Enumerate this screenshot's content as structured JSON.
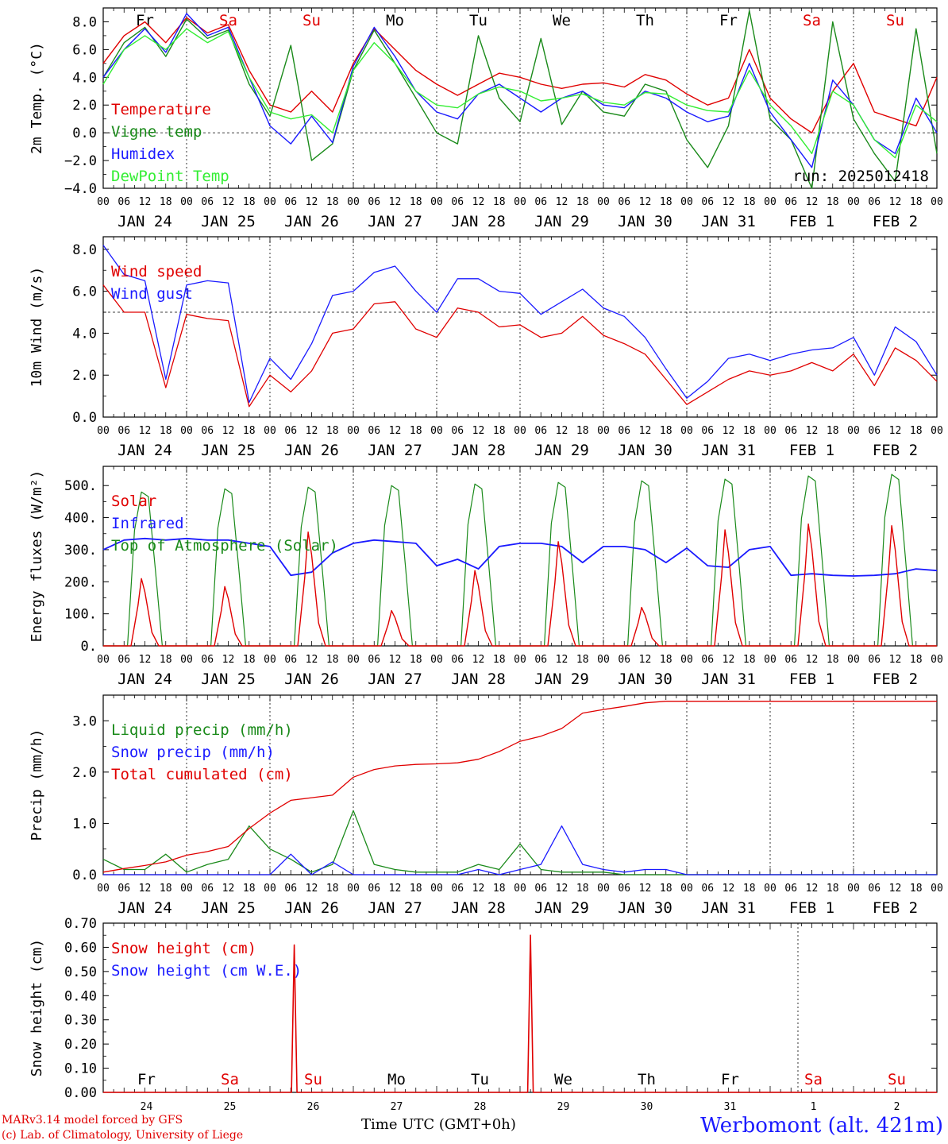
{
  "footer": {
    "model": "MARv3.14 model forced by GFS",
    "lab": "(c) Lab. of Climatology, University of Liege",
    "time_label": "Time UTC (GMT+0h)",
    "station": "Werbomont (alt. 421m)"
  },
  "hour_ticks": [
    "00",
    "06",
    "12",
    "18"
  ],
  "date_labels": [
    "JAN 24",
    "JAN 25",
    "JAN 26",
    "JAN 27",
    "JAN 28",
    "JAN 29",
    "JAN 30",
    "JAN 31",
    "FEB  1",
    "FEB  2"
  ],
  "day_names": [
    "Fr",
    "Sa",
    "Su",
    "Mo",
    "Tu",
    "We",
    "Th",
    "Fr",
    "Sa",
    "Su"
  ],
  "day_colors": [
    "#000000",
    "#e00000",
    "#e00000",
    "#000000",
    "#000000",
    "#000000",
    "#000000",
    "#000000",
    "#e00000",
    "#e00000"
  ],
  "day_numbers": [
    "24",
    "25",
    "26",
    "27",
    "28",
    "29",
    "30",
    "31",
    "1",
    "2"
  ],
  "chart_data": [
    {
      "type": "line",
      "ylabel": "2m Temp. (°C)",
      "ylim": [
        -4,
        9
      ],
      "yticks": [
        -4,
        -2,
        0,
        2,
        4,
        6,
        8
      ],
      "ytick_labels": [
        "−4.0",
        "−2.0",
        "0.0",
        "2.0",
        "4.0",
        "6.0",
        "8.0"
      ],
      "ref_line": 0,
      "annotation": "run: 2025012418",
      "x_hours": [
        0,
        6,
        12,
        18,
        24,
        30,
        36,
        42,
        48,
        54,
        60,
        66,
        72,
        78,
        84,
        90,
        96,
        102,
        108,
        114,
        120,
        126,
        132,
        138,
        144,
        150,
        156,
        162,
        168,
        174,
        180,
        186,
        192,
        198,
        204,
        210,
        216,
        222,
        228,
        234,
        240
      ],
      "series": [
        {
          "name": "Temperature",
          "color": "#e00000",
          "values": [
            5.0,
            7.0,
            8.0,
            6.5,
            8.3,
            7.2,
            7.8,
            4.5,
            2.0,
            1.5,
            3.0,
            1.5,
            5.0,
            7.5,
            6.0,
            4.5,
            3.5,
            2.7,
            3.5,
            4.3,
            4.0,
            3.5,
            3.2,
            3.5,
            3.6,
            3.3,
            4.2,
            3.8,
            2.8,
            2.0,
            2.5,
            6.0,
            2.5,
            1.0,
            0,
            3.0,
            5.0,
            1.5,
            1.0,
            0.5,
            4.0
          ]
        },
        {
          "name": "Vigne temp",
          "color": "#1a8a1a",
          "values": [
            4.0,
            6.5,
            7.6,
            5.5,
            8.2,
            6.8,
            7.4,
            3.5,
            1.2,
            6.3,
            -2.0,
            -0.8,
            4.5,
            7.4,
            5.0,
            2.5,
            0,
            -0.8,
            7.0,
            2.5,
            0.8,
            6.8,
            0.6,
            3.0,
            1.5,
            1.2,
            3.5,
            3.0,
            -0.5,
            -2.5,
            0.5,
            8.8,
            1.0,
            -0.5,
            -4.0,
            8.0,
            1.0,
            -1.5,
            -3.5,
            7.5,
            -1.5
          ]
        },
        {
          "name": "Humidex",
          "color": "#1a1aff",
          "values": [
            4.0,
            6.0,
            7.5,
            5.8,
            8.6,
            7.0,
            7.6,
            4.0,
            0.5,
            -0.8,
            1.2,
            -0.7,
            4.8,
            7.6,
            5.5,
            3.0,
            1.5,
            1.0,
            2.8,
            3.5,
            2.5,
            1.5,
            2.5,
            3.0,
            2.0,
            1.8,
            3.0,
            2.5,
            1.5,
            0.8,
            1.2,
            5.0,
            1.5,
            -0.5,
            -2.5,
            3.8,
            2.0,
            -0.5,
            -1.5,
            2.5,
            0.0
          ]
        },
        {
          "name": "DewPoint Temp",
          "color": "#33ee33",
          "values": [
            3.5,
            6.0,
            7.0,
            6.0,
            7.5,
            6.5,
            7.3,
            4.0,
            1.5,
            1.0,
            1.3,
            0.0,
            4.5,
            6.5,
            5.0,
            3.0,
            2.0,
            1.8,
            2.8,
            3.3,
            3.0,
            2.3,
            2.5,
            2.8,
            2.2,
            2.0,
            2.9,
            2.8,
            2.0,
            1.6,
            1.5,
            4.5,
            2.0,
            0.5,
            -1.5,
            3.0,
            2.0,
            -0.5,
            -1.8,
            2.0,
            0.8
          ]
        }
      ]
    },
    {
      "type": "line",
      "ylabel": "10m Wind (m/s)",
      "ylim": [
        0,
        8.6
      ],
      "yticks": [
        0,
        2,
        4,
        6,
        8
      ],
      "ytick_labels": [
        "0.0",
        "2.0",
        "4.0",
        "6.0",
        "8.0"
      ],
      "ref_line": 5,
      "x_hours": [
        0,
        6,
        12,
        18,
        24,
        30,
        36,
        42,
        48,
        54,
        60,
        66,
        72,
        78,
        84,
        90,
        96,
        102,
        108,
        114,
        120,
        126,
        132,
        138,
        144,
        150,
        156,
        162,
        168,
        174,
        180,
        186,
        192,
        198,
        204,
        210,
        216,
        222,
        228,
        234,
        240
      ],
      "series": [
        {
          "name": "Wind speed",
          "color": "#e00000",
          "values": [
            6.3,
            5.0,
            5.0,
            1.4,
            4.9,
            4.7,
            4.6,
            0.5,
            2.0,
            1.2,
            2.2,
            4.0,
            4.2,
            5.4,
            5.5,
            4.2,
            3.8,
            5.2,
            5.0,
            4.3,
            4.4,
            3.8,
            4.0,
            4.8,
            3.9,
            3.5,
            3.0,
            1.8,
            0.6,
            1.2,
            1.8,
            2.2,
            2.0,
            2.2,
            2.6,
            2.2,
            3.0,
            1.5,
            3.3,
            2.7,
            1.7
          ]
        },
        {
          "name": "Wind gust",
          "color": "#1a1aff",
          "values": [
            8.2,
            6.8,
            6.5,
            1.8,
            6.3,
            6.5,
            6.4,
            0.7,
            2.8,
            1.8,
            3.5,
            5.8,
            6.0,
            6.9,
            7.2,
            6.0,
            5.0,
            6.6,
            6.6,
            6.0,
            5.9,
            4.9,
            5.5,
            6.1,
            5.2,
            4.8,
            3.8,
            2.3,
            0.9,
            1.7,
            2.8,
            3.0,
            2.7,
            3.0,
            3.2,
            3.3,
            3.8,
            2.0,
            4.3,
            3.6,
            2.0
          ]
        }
      ]
    },
    {
      "type": "line",
      "ylabel": "Energy fluxes (W/m²)",
      "ylim": [
        0,
        560
      ],
      "yticks": [
        0,
        100,
        200,
        300,
        400,
        500
      ],
      "ytick_labels": [
        "0.",
        "100.",
        "200.",
        "300.",
        "400.",
        "500."
      ],
      "solar_peaks": [
        210,
        185,
        355,
        110,
        235,
        325,
        120,
        362,
        380,
        375
      ],
      "toa_peaks": [
        480,
        490,
        495,
        500,
        505,
        510,
        515,
        520,
        530,
        535
      ],
      "infrared_hours": [
        0,
        6,
        12,
        18,
        24,
        30,
        36,
        42,
        48,
        54,
        60,
        66,
        72,
        78,
        84,
        90,
        96,
        102,
        108,
        114,
        120,
        126,
        132,
        138,
        144,
        150,
        156,
        162,
        168,
        174,
        180,
        186,
        192,
        198,
        204,
        210,
        216,
        222,
        228,
        234,
        240
      ],
      "infrared_values": [
        300,
        330,
        335,
        330,
        335,
        330,
        330,
        320,
        310,
        220,
        230,
        290,
        320,
        330,
        325,
        320,
        250,
        270,
        240,
        310,
        320,
        320,
        310,
        260,
        310,
        310,
        300,
        260,
        305,
        250,
        245,
        300,
        310,
        220,
        225,
        220,
        218,
        220,
        225,
        240,
        235
      ],
      "series": [
        {
          "name": "Solar",
          "color": "#e00000"
        },
        {
          "name": "Infrared",
          "color": "#1a1aff"
        },
        {
          "name": "Top of Atmosphere (Solar)",
          "color": "#1a8a1a"
        }
      ]
    },
    {
      "type": "line",
      "ylabel": "Precip (mm/h)",
      "ylim": [
        0,
        3.5
      ],
      "yticks": [
        0,
        1,
        2,
        3
      ],
      "ytick_labels": [
        "0.0",
        "1.0",
        "2.0",
        "3.0"
      ],
      "x_hours": [
        0,
        6,
        12,
        18,
        24,
        30,
        36,
        42,
        48,
        54,
        60,
        66,
        72,
        78,
        84,
        90,
        96,
        102,
        108,
        114,
        120,
        126,
        132,
        138,
        144,
        150,
        156,
        162,
        168,
        174,
        180,
        186,
        192,
        198,
        204,
        210,
        216,
        222,
        228,
        234,
        240
      ],
      "series": [
        {
          "name": "Liquid precip (mm/h)",
          "color": "#1a8a1a",
          "values": [
            0.3,
            0.1,
            0.1,
            0.4,
            0.05,
            0.2,
            0.3,
            0.95,
            0.5,
            0.3,
            0.05,
            0.2,
            1.25,
            0.2,
            0.1,
            0.05,
            0.05,
            0.05,
            0.2,
            0.1,
            0.6,
            0.1,
            0.05,
            0.05,
            0.05,
            0.0,
            0.0,
            0.0,
            0.0,
            0.0,
            0.0,
            0.0,
            0.0,
            0.0,
            0.0,
            0.0,
            0.0,
            0.0,
            0.0,
            0.0,
            0.0
          ]
        },
        {
          "name": "Snow precip (mm/h)",
          "color": "#1a1aff",
          "values": [
            0.0,
            0.0,
            0.0,
            0.0,
            0.0,
            0.0,
            0.0,
            0.0,
            0.0,
            0.4,
            0.0,
            0.25,
            0.0,
            0.0,
            0.0,
            0.0,
            0.0,
            0.0,
            0.1,
            0.0,
            0.1,
            0.2,
            0.95,
            0.2,
            0.1,
            0.05,
            0.1,
            0.1,
            0.0,
            0.0,
            0.0,
            0.0,
            0.0,
            0.0,
            0.0,
            0.0,
            0.0,
            0.0,
            0.0,
            0.0,
            0.0
          ]
        },
        {
          "name": "Total cumulated (cm)",
          "color": "#e00000",
          "values": [
            0.05,
            0.12,
            0.18,
            0.25,
            0.38,
            0.45,
            0.55,
            0.9,
            1.2,
            1.45,
            1.5,
            1.55,
            1.9,
            2.05,
            2.12,
            2.15,
            2.16,
            2.18,
            2.25,
            2.4,
            2.6,
            2.7,
            2.85,
            3.15,
            3.22,
            3.28,
            3.35,
            3.38,
            3.38,
            3.38,
            3.38,
            3.38,
            3.38,
            3.38,
            3.38,
            3.38,
            3.38,
            3.38,
            3.38,
            3.38,
            3.38
          ]
        }
      ]
    },
    {
      "type": "line",
      "ylabel": "Snow height (cm)",
      "ylim": [
        0,
        0.7
      ],
      "yticks": [
        0,
        0.1,
        0.2,
        0.3,
        0.4,
        0.5,
        0.6,
        0.7
      ],
      "ytick_labels": [
        "0.00",
        "0.10",
        "0.20",
        "0.30",
        "0.40",
        "0.50",
        "0.60",
        "0.70"
      ],
      "spikes": [
        {
          "hour": 55,
          "value": 0.61
        },
        {
          "hour": 123,
          "value": 0.65
        }
      ],
      "series": [
        {
          "name": "Snow height (cm)",
          "color": "#e00000"
        },
        {
          "name": "Snow height (cm W.E.)",
          "color": "#1a1aff"
        }
      ]
    }
  ]
}
